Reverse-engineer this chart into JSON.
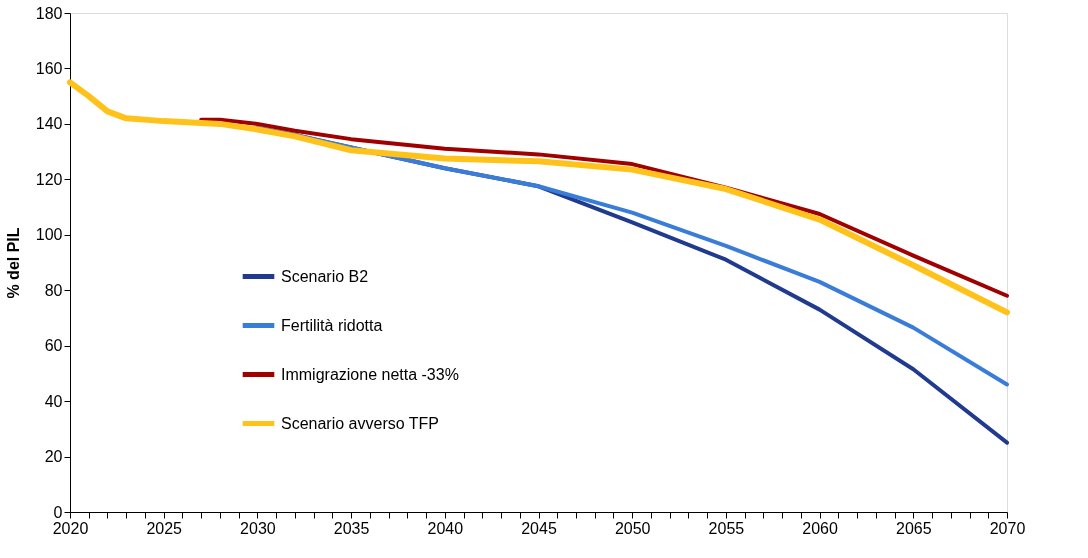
{
  "chart_data": {
    "type": "line",
    "ylabel": "% del PIL",
    "x": [
      2020,
      2021,
      2022,
      2023,
      2025,
      2027,
      2028,
      2030,
      2032,
      2035,
      2040,
      2045,
      2050,
      2055,
      2060,
      2065,
      2070
    ],
    "series": [
      {
        "name": "Scenario B2",
        "color": "#1f3a8f",
        "values": [
          null,
          null,
          null,
          null,
          null,
          null,
          null,
          138.5,
          136,
          131.5,
          124,
          117.5,
          104.5,
          91,
          73,
          51.5,
          25
        ]
      },
      {
        "name": "Fertilità ridotta",
        "color": "#3a7dd8",
        "values": [
          null,
          null,
          null,
          null,
          null,
          null,
          null,
          138.5,
          136,
          131.5,
          124,
          117.5,
          108,
          96,
          83,
          66.5,
          46
        ]
      },
      {
        "name": "Immigrazione netta -33%",
        "color": "#a00000",
        "values": [
          null,
          null,
          null,
          null,
          null,
          141.5,
          141.5,
          140,
          137.5,
          134.5,
          131,
          129,
          125.5,
          117,
          107.5,
          92.5,
          78
        ]
      },
      {
        "name": "Scenario avverso TFP",
        "color": "#ffc21a",
        "values": [
          155,
          150,
          144.5,
          142,
          141,
          140.3,
          140,
          138,
          135.5,
          130.5,
          127.5,
          126.5,
          123.5,
          116.5,
          105.5,
          89,
          72
        ]
      }
    ],
    "xlim": [
      2020,
      2070
    ],
    "xticks": [
      2020,
      {
        "value": 2021,
        "label": null
      },
      {
        "value": 2022,
        "label": null
      },
      {
        "value": 2023,
        "label": null
      },
      {
        "value": 2024,
        "label": null
      },
      2025,
      {
        "value": 2026,
        "label": null
      },
      {
        "value": 2027,
        "label": null
      },
      {
        "value": 2028,
        "label": null
      },
      {
        "value": 2029,
        "label": null
      },
      2030,
      {
        "value": 2031,
        "label": null
      },
      {
        "value": 2032,
        "label": null
      },
      {
        "value": 2033,
        "label": null
      },
      {
        "value": 2034,
        "label": null
      },
      2035,
      {
        "value": 2036,
        "label": null
      },
      {
        "value": 2037,
        "label": null
      },
      {
        "value": 2038,
        "label": null
      },
      {
        "value": 2039,
        "label": null
      },
      2040,
      {
        "value": 2041,
        "label": null
      },
      {
        "value": 2042,
        "label": null
      },
      {
        "value": 2043,
        "label": null
      },
      {
        "value": 2044,
        "label": null
      },
      2045,
      {
        "value": 2046,
        "label": null
      },
      {
        "value": 2047,
        "label": null
      },
      {
        "value": 2048,
        "label": null
      },
      {
        "value": 2049,
        "label": null
      },
      2050,
      {
        "value": 2051,
        "label": null
      },
      {
        "value": 2052,
        "label": null
      },
      {
        "value": 2053,
        "label": null
      },
      {
        "value": 2054,
        "label": null
      },
      2055,
      {
        "value": 2056,
        "label": null
      },
      {
        "value": 2057,
        "label": null
      },
      {
        "value": 2058,
        "label": null
      },
      {
        "value": 2059,
        "label": null
      },
      2060,
      {
        "value": 2061,
        "label": null
      },
      {
        "value": 2062,
        "label": null
      },
      {
        "value": 2063,
        "label": null
      },
      {
        "value": 2064,
        "label": null
      },
      2065,
      {
        "value": 2066,
        "label": null
      },
      {
        "value": 2067,
        "label": null
      },
      {
        "value": 2068,
        "label": null
      },
      {
        "value": 2069,
        "label": null
      },
      2070
    ],
    "ylim": [
      0,
      180
    ],
    "yticks": [
      0,
      20,
      40,
      60,
      80,
      100,
      120,
      140,
      160,
      180
    ],
    "grid": false,
    "legend": "left",
    "marker": "none",
    "line_style": "solid"
  }
}
